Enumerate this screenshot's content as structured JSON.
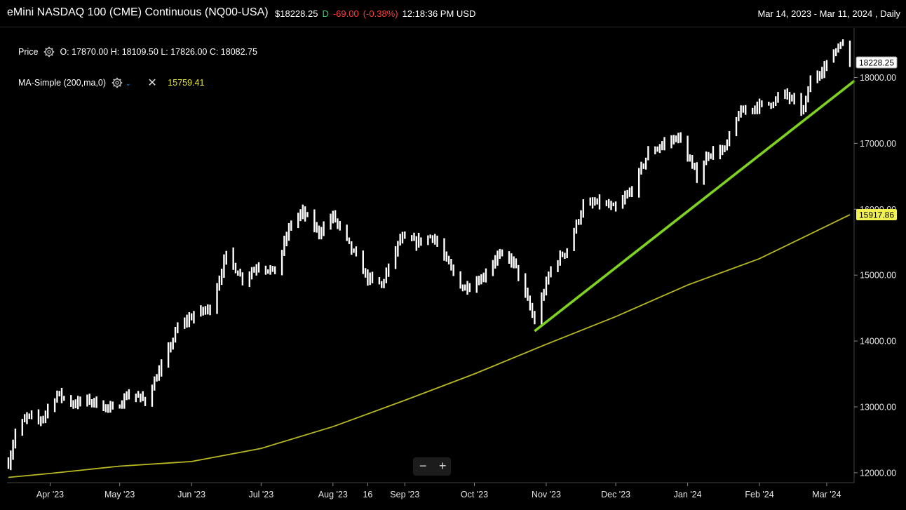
{
  "header": {
    "title": "eMini NASDAQ 100 (CME) Continuous (NQ00-USA)",
    "price": "$18228.25",
    "d_label": "D",
    "change": "-69.00",
    "change_pct": "(-0.38%)",
    "time": "12:18:36 PM USD",
    "range": "Mar 14, 2023 - Mar 11, 2024 , Daily"
  },
  "legend": {
    "price_label": "Price",
    "ohlc": "O: 17870.00  H: 18109.50  L: 17826.00  C: 18082.75",
    "ma_label": "MA-Simple (200,ma,0)",
    "ma_value": "15759.41"
  },
  "zoom": {
    "minus": "−",
    "plus": "+"
  },
  "colors": {
    "background": "#000000",
    "bars": "#ffffff",
    "ma": "#b8b820",
    "trendline": "#7ed321",
    "ma_tag": "#f0f050"
  },
  "chart_data": {
    "type": "line",
    "subtype": "ohlc-bar",
    "ylim": [
      11850,
      18750
    ],
    "yticks": [
      "12000.00",
      "13000.00",
      "14000.00",
      "15000.00",
      "16000.00",
      "17000.00",
      "18000.00"
    ],
    "price_tags": [
      {
        "label": "18228.25",
        "value": 18228.25,
        "style": "last"
      },
      {
        "label": "15917.86",
        "value": 15917.86,
        "style": "ma"
      }
    ],
    "xlim": [
      "2023-03-14",
      "2024-03-11"
    ],
    "xticks": [
      {
        "label": "Apr '23",
        "date": "2023-04-01"
      },
      {
        "label": "May '23",
        "date": "2023-05-01"
      },
      {
        "label": "Jun '23",
        "date": "2023-06-01"
      },
      {
        "label": "Jul '23",
        "date": "2023-07-01"
      },
      {
        "label": "Aug '23",
        "date": "2023-08-01"
      },
      {
        "label": "16",
        "date": "2023-08-16"
      },
      {
        "label": "Sep '23",
        "date": "2023-09-01"
      },
      {
        "label": "Oct '23",
        "date": "2023-10-01"
      },
      {
        "label": "Nov '23",
        "date": "2023-11-01"
      },
      {
        "label": "Dec '23",
        "date": "2023-12-01"
      },
      {
        "label": "Jan '24",
        "date": "2024-01-01"
      },
      {
        "label": "Feb '24",
        "date": "2024-02-01"
      },
      {
        "label": "Mar '24",
        "date": "2024-03-01"
      }
    ],
    "price_path": [
      [
        "2023-03-14",
        12150
      ],
      [
        "2023-03-17",
        12600
      ],
      [
        "2023-03-22",
        12850
      ],
      [
        "2023-03-28",
        12800
      ],
      [
        "2023-04-04",
        13200
      ],
      [
        "2023-04-11",
        13050
      ],
      [
        "2023-04-18",
        13100
      ],
      [
        "2023-04-25",
        13000
      ],
      [
        "2023-04-28",
        12950
      ],
      [
        "2023-05-05",
        13200
      ],
      [
        "2023-05-12",
        13100
      ],
      [
        "2023-05-19",
        13600
      ],
      [
        "2023-05-26",
        14200
      ],
      [
        "2023-06-02",
        14400
      ],
      [
        "2023-06-09",
        14500
      ],
      [
        "2023-06-16",
        15300
      ],
      [
        "2023-06-23",
        14950
      ],
      [
        "2023-06-30",
        15150
      ],
      [
        "2023-07-07",
        15050
      ],
      [
        "2023-07-14",
        15800
      ],
      [
        "2023-07-19",
        15950
      ],
      [
        "2023-07-26",
        15650
      ],
      [
        "2023-08-01",
        15900
      ],
      [
        "2023-08-08",
        15450
      ],
      [
        "2023-08-16",
        14950
      ],
      [
        "2023-08-22",
        14850
      ],
      [
        "2023-08-30",
        15550
      ],
      [
        "2023-09-06",
        15500
      ],
      [
        "2023-09-13",
        15600
      ],
      [
        "2023-09-20",
        15150
      ],
      [
        "2023-09-26",
        14800
      ],
      [
        "2023-10-04",
        14950
      ],
      [
        "2023-10-11",
        15300
      ],
      [
        "2023-10-18",
        15200
      ],
      [
        "2023-10-25",
        14500
      ],
      [
        "2023-10-27",
        14300
      ],
      [
        "2023-11-03",
        15100
      ],
      [
        "2023-11-10",
        15400
      ],
      [
        "2023-11-17",
        16050
      ],
      [
        "2023-11-24",
        16100
      ],
      [
        "2023-12-01",
        16000
      ],
      [
        "2023-12-08",
        16300
      ],
      [
        "2023-12-15",
        16850
      ],
      [
        "2023-12-22",
        17000
      ],
      [
        "2023-12-28",
        17100
      ],
      [
        "2024-01-05",
        16500
      ],
      [
        "2024-01-10",
        16850
      ],
      [
        "2024-01-17",
        16900
      ],
      [
        "2024-01-23",
        17450
      ],
      [
        "2024-01-29",
        17550
      ],
      [
        "2024-02-05",
        17600
      ],
      [
        "2024-02-12",
        17750
      ],
      [
        "2024-02-20",
        17500
      ],
      [
        "2024-02-23",
        17950
      ],
      [
        "2024-03-01",
        18200
      ],
      [
        "2024-03-07",
        18550
      ],
      [
        "2024-03-11",
        18228
      ]
    ],
    "series": [
      {
        "kind": "ma",
        "points": [
          [
            "2023-03-14",
            11930
          ],
          [
            "2023-04-01",
            11990
          ],
          [
            "2023-05-01",
            12100
          ],
          [
            "2023-06-01",
            12170
          ],
          [
            "2023-07-01",
            12370
          ],
          [
            "2023-08-01",
            12700
          ],
          [
            "2023-09-01",
            13100
          ],
          [
            "2023-10-01",
            13500
          ],
          [
            "2023-11-01",
            13950
          ],
          [
            "2023-12-01",
            14370
          ],
          [
            "2024-01-01",
            14850
          ],
          [
            "2024-02-01",
            15250
          ],
          [
            "2024-03-11",
            15917
          ]
        ]
      },
      {
        "kind": "trendline",
        "points": [
          [
            "2023-10-27",
            14150
          ],
          [
            "2024-03-13",
            17950
          ]
        ]
      }
    ]
  }
}
